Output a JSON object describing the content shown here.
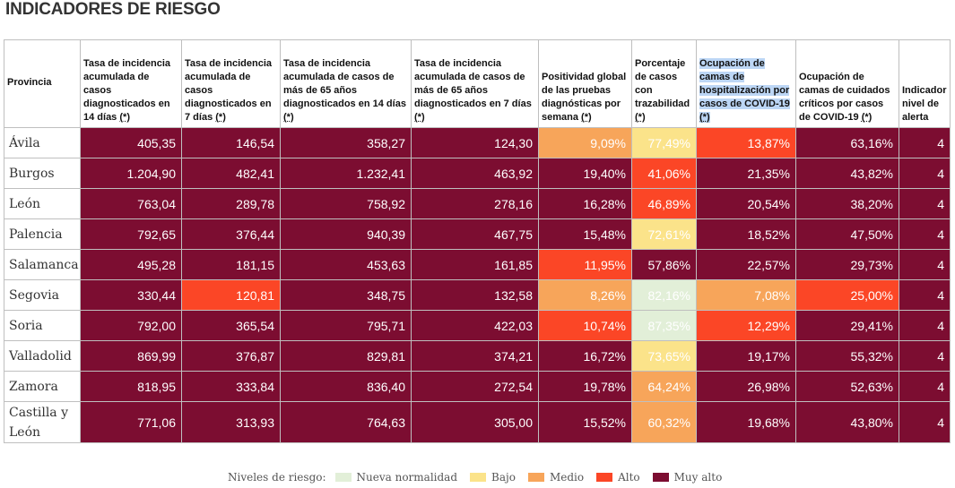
{
  "page": {
    "title": "INDICADORES DE RIESGO"
  },
  "colors": {
    "nueva_normalidad": "#e2efd8",
    "bajo": "#fbe38a",
    "medio": "#f7a55a",
    "alto": "#fb4626",
    "muy_alto": "#7c0d31"
  },
  "table": {
    "headers": [
      "Provincia",
      "Tasa de incidencia acumulada de casos diagnosticados en 14 días",
      "Tasa de incidencia acumulada de casos diagnosticados en 7 días",
      "Tasa de incidencia acumulada de casos de más de 65 años diagnosticados en 14 días",
      "Tasa de incidencia acumulada de casos de más de 65 años diagnosticados en 7 días",
      "Positividad global de las pruebas diagnósticas por semana",
      "Porcentaje de casos con trazabilidad",
      "Ocupación de camas de hospitalización por casos de COVID-19",
      "Ocupación de camas de cuidados críticos por casos de COVID-19",
      "Indicador nivel de alerta"
    ],
    "footnote_mark": "(*)",
    "rows": [
      {
        "provincia": "Ávila",
        "values": [
          "405,35",
          "146,54",
          "358,27",
          "124,30",
          "9,09%",
          "77,49%",
          "13,87%",
          "63,16%",
          "4"
        ],
        "levels": [
          "mx",
          "mx",
          "mx",
          "mx",
          "me",
          "ba",
          "al",
          "mx",
          "mx"
        ]
      },
      {
        "provincia": "Burgos",
        "values": [
          "1.204,90",
          "482,41",
          "1.232,41",
          "463,92",
          "19,40%",
          "41,06%",
          "21,35%",
          "43,82%",
          "4"
        ],
        "levels": [
          "mx",
          "mx",
          "mx",
          "mx",
          "mx",
          "al",
          "mx",
          "mx",
          "mx"
        ]
      },
      {
        "provincia": "León",
        "values": [
          "763,04",
          "289,78",
          "758,92",
          "278,16",
          "16,28%",
          "46,89%",
          "20,54%",
          "38,20%",
          "4"
        ],
        "levels": [
          "mx",
          "mx",
          "mx",
          "mx",
          "mx",
          "al",
          "mx",
          "mx",
          "mx"
        ]
      },
      {
        "provincia": "Palencia",
        "values": [
          "792,65",
          "376,44",
          "940,39",
          "467,75",
          "15,48%",
          "72,61%",
          "18,52%",
          "47,50%",
          "4"
        ],
        "levels": [
          "mx",
          "mx",
          "mx",
          "mx",
          "mx",
          "ba",
          "mx",
          "mx",
          "mx"
        ]
      },
      {
        "provincia": "Salamanca",
        "values": [
          "495,28",
          "181,15",
          "453,63",
          "161,85",
          "11,95%",
          "57,86%",
          "22,57%",
          "29,73%",
          "4"
        ],
        "levels": [
          "mx",
          "mx",
          "mx",
          "mx",
          "al",
          "mx",
          "mx",
          "mx",
          "mx"
        ]
      },
      {
        "provincia": "Segovia",
        "values": [
          "330,44",
          "120,81",
          "348,75",
          "132,58",
          "8,26%",
          "82,16%",
          "7,08%",
          "25,00%",
          "4"
        ],
        "levels": [
          "mx",
          "al",
          "mx",
          "mx",
          "me",
          "nn",
          "me",
          "al",
          "mx"
        ]
      },
      {
        "provincia": "Soria",
        "values": [
          "792,00",
          "365,54",
          "795,71",
          "422,03",
          "10,74%",
          "87,35%",
          "12,29%",
          "29,41%",
          "4"
        ],
        "levels": [
          "mx",
          "mx",
          "mx",
          "mx",
          "al",
          "nn",
          "al",
          "mx",
          "mx"
        ]
      },
      {
        "provincia": "Valladolid",
        "values": [
          "869,99",
          "376,87",
          "829,81",
          "374,21",
          "16,72%",
          "73,65%",
          "19,17%",
          "55,32%",
          "4"
        ],
        "levels": [
          "mx",
          "mx",
          "mx",
          "mx",
          "mx",
          "ba",
          "mx",
          "mx",
          "mx"
        ]
      },
      {
        "provincia": "Zamora",
        "values": [
          "818,95",
          "333,84",
          "836,40",
          "272,54",
          "19,78%",
          "64,24%",
          "26,98%",
          "52,63%",
          "4"
        ],
        "levels": [
          "mx",
          "mx",
          "mx",
          "mx",
          "mx",
          "me",
          "mx",
          "mx",
          "mx"
        ]
      },
      {
        "provincia": "Castilla y León",
        "values": [
          "771,06",
          "313,93",
          "764,63",
          "305,00",
          "15,52%",
          "60,32%",
          "19,68%",
          "43,80%",
          "4"
        ],
        "levels": [
          "mx",
          "mx",
          "mx",
          "mx",
          "mx",
          "me",
          "mx",
          "mx",
          "mx"
        ]
      }
    ]
  },
  "legend": {
    "title": "Niveles de riesgo:",
    "items": [
      {
        "label": "Nueva normalidad",
        "level": "nn"
      },
      {
        "label": "Bajo",
        "level": "ba"
      },
      {
        "label": "Medio",
        "level": "me"
      },
      {
        "label": "Alto",
        "level": "al"
      },
      {
        "label": "Muy alto",
        "level": "mx"
      }
    ]
  }
}
